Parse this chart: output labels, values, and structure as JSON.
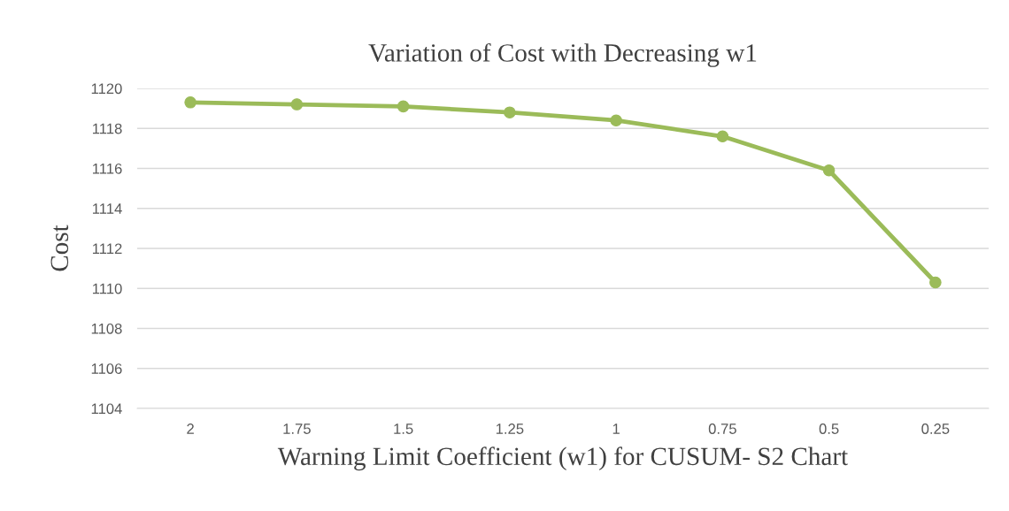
{
  "chart_data": {
    "type": "line",
    "title": "Variation of Cost with Decreasing w1",
    "xlabel": "Warning Limit Coefficient (w1) for CUSUM- S2 Chart",
    "ylabel": "Cost",
    "categories": [
      "2",
      "1.75",
      "1.5",
      "1.25",
      "1",
      "0.75",
      "0.5",
      "0.25"
    ],
    "series": [
      {
        "color": "#9bbb59",
        "values": [
          1119.3,
          1119.2,
          1119.1,
          1118.8,
          1118.4,
          1117.6,
          1115.9,
          1110.3
        ]
      }
    ],
    "ylim": [
      1104,
      1120
    ],
    "yticks": [
      1104,
      1106,
      1108,
      1110,
      1112,
      1114,
      1116,
      1118,
      1120
    ],
    "grid": "y",
    "marker": "circle",
    "line_style": "solid",
    "legend": false
  }
}
